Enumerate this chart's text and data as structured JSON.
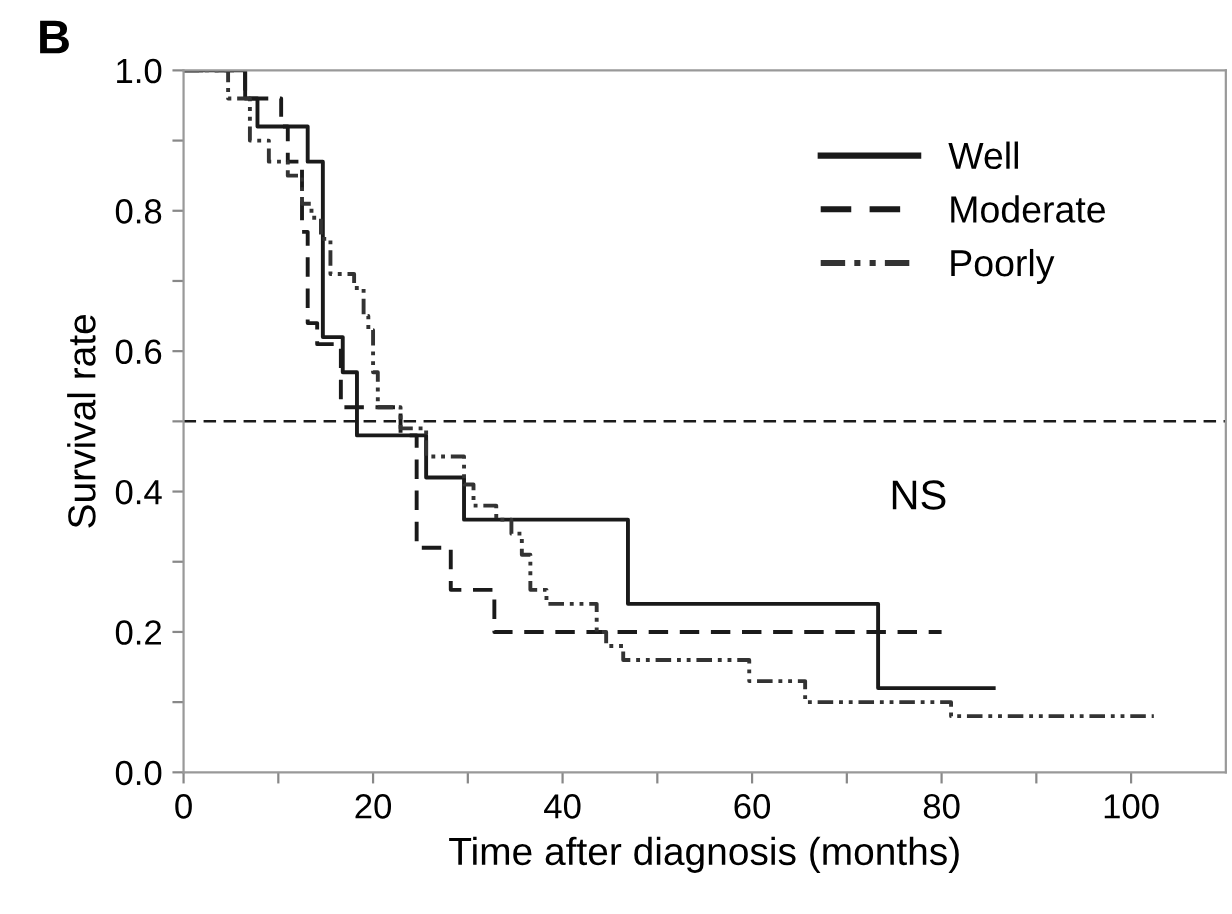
{
  "chart_data": {
    "type": "step",
    "title": "B",
    "xlabel": "Time after diagnosis (months)",
    "ylabel": "Survival rate",
    "xlim": [
      0,
      110
    ],
    "ylim": [
      0,
      1.0
    ],
    "xticks": [
      0,
      {
        "value": 10,
        "label": null
      },
      20,
      {
        "value": 30,
        "label": null
      },
      40,
      {
        "value": 50,
        "label": null
      },
      60,
      {
        "value": 70,
        "label": null
      },
      80,
      {
        "value": 90,
        "label": null
      },
      100
    ],
    "yticks": [
      {
        "value": 0,
        "label": "0.0"
      },
      {
        "value": 0.1,
        "label": null
      },
      0.2,
      {
        "value": 0.3,
        "label": null
      },
      0.4,
      {
        "value": 0.5,
        "label": null
      },
      0.6,
      {
        "value": 0.7,
        "label": null
      },
      0.8,
      {
        "value": 0.9,
        "label": null
      },
      {
        "value": 1.0,
        "label": "1.0"
      }
    ],
    "series": [
      {
        "name": "Well",
        "color": "#1a1a1a",
        "line_style": "solid",
        "x": [
          0,
          6.5,
          7.8,
          13.1,
          14.7,
          16.8,
          18.3,
          25.6,
          29.6,
          46.9,
          73.3,
          85.5
        ],
        "values": [
          1.0,
          0.96,
          0.92,
          0.87,
          0.62,
          0.57,
          0.48,
          0.42,
          0.36,
          0.24,
          0.12,
          0.12
        ]
      },
      {
        "name": "Moderate",
        "color": "#1a1a1a",
        "line_style": "dashed",
        "x": [
          0,
          6.5,
          10.3,
          11,
          12.5,
          13.1,
          14.1,
          16.6,
          22.9,
          24.6,
          28.2,
          32.8,
          80
        ],
        "values": [
          1.0,
          0.96,
          0.92,
          0.87,
          0.77,
          0.64,
          0.61,
          0.52,
          0.48,
          0.32,
          0.26,
          0.2,
          0.2
        ]
      },
      {
        "name": "Poorly",
        "color": "#333333",
        "line_style": "dashdot",
        "x": [
          0,
          4.7,
          7,
          9,
          11,
          12.5,
          13.5,
          14.5,
          15.5,
          18,
          19,
          19.5,
          20,
          20.5,
          22.9,
          25.6,
          29.6,
          30.6,
          33,
          34.6,
          35.7,
          36.6,
          38.3,
          43.6,
          44.6,
          46.4,
          59.7,
          65.6,
          81,
          102.4
        ],
        "values": [
          1.0,
          0.96,
          0.9,
          0.87,
          0.85,
          0.81,
          0.79,
          0.76,
          0.71,
          0.69,
          0.65,
          0.63,
          0.57,
          0.52,
          0.49,
          0.45,
          0.41,
          0.38,
          0.36,
          0.34,
          0.31,
          0.26,
          0.24,
          0.2,
          0.18,
          0.16,
          0.13,
          0.1,
          0.08,
          0.08
        ]
      }
    ],
    "ref_lines": [
      {
        "axis": "y",
        "value": 0.5,
        "color": "#1a1a1a",
        "line_style": "dashed"
      }
    ],
    "annotations": [
      "NS"
    ],
    "legend": "top right",
    "grid": false
  }
}
